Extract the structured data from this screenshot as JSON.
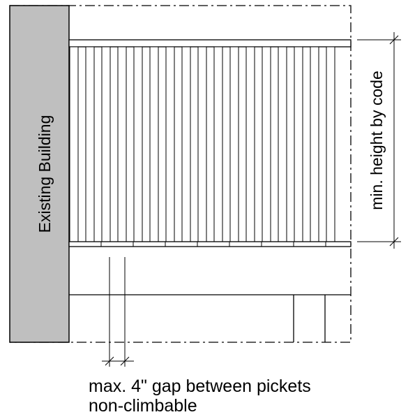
{
  "building_label": "Existing Building",
  "height_label": "min. height by code",
  "gap_note": "max. 4\" gap between pickets",
  "climb_note": "non-climbable",
  "colors": {
    "building_fill": "#bfbfbf",
    "line": "#000000"
  }
}
